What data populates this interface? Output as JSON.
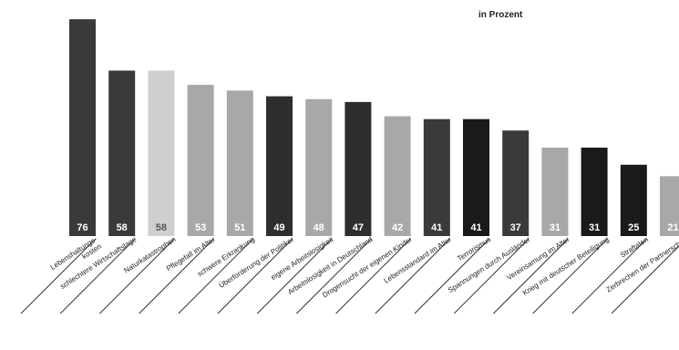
{
  "chart_data": {
    "type": "bar",
    "title": "",
    "subtitle": "in Prozent",
    "xlabel": "",
    "ylabel": "",
    "ylim": [
      0,
      80
    ],
    "grid": false,
    "legend": "none",
    "categories": [
      "Lebenshaltungs-\nkosten",
      "schlechtere Wirtschaftslage",
      "Naturkatastrophen",
      "Pflegefall im Alter",
      "schwere Erkrankung",
      "Überforderung der Politiker",
      "eigene Arbeitslosigkeit",
      "Arbeitslosigkeit in Deutschland",
      "Drogensucht der eigenen Kinder",
      "Lebensstandard im Alter",
      "Terrorismus",
      "Spannungen durch Ausländer",
      "Vereinsamung im Alter",
      "Krieg mit deutscher Beteiligung",
      "Straftaten",
      "Zerbrechen der Partnerschaft"
    ],
    "values": [
      76,
      58,
      58,
      53,
      51,
      49,
      48,
      47,
      42,
      41,
      41,
      37,
      31,
      31,
      25,
      21
    ],
    "bar_colors": [
      "#3a3a3a",
      "#3a3a3a",
      "#cfcfcf",
      "#a8a8a8",
      "#a8a8a8",
      "#2e2e2e",
      "#a8a8a8",
      "#2e2e2e",
      "#a8a8a8",
      "#3a3a3a",
      "#1a1a1a",
      "#3a3a3a",
      "#a8a8a8",
      "#1a1a1a",
      "#1a1a1a",
      "#a8a8a8"
    ],
    "label_colors": [
      "#ffffff",
      "#ffffff",
      "#555555",
      "#ffffff",
      "#ffffff",
      "#ffffff",
      "#ffffff",
      "#ffffff",
      "#ffffff",
      "#ffffff",
      "#ffffff",
      "#ffffff",
      "#ffffff",
      "#ffffff",
      "#ffffff",
      "#ffffff"
    ]
  }
}
